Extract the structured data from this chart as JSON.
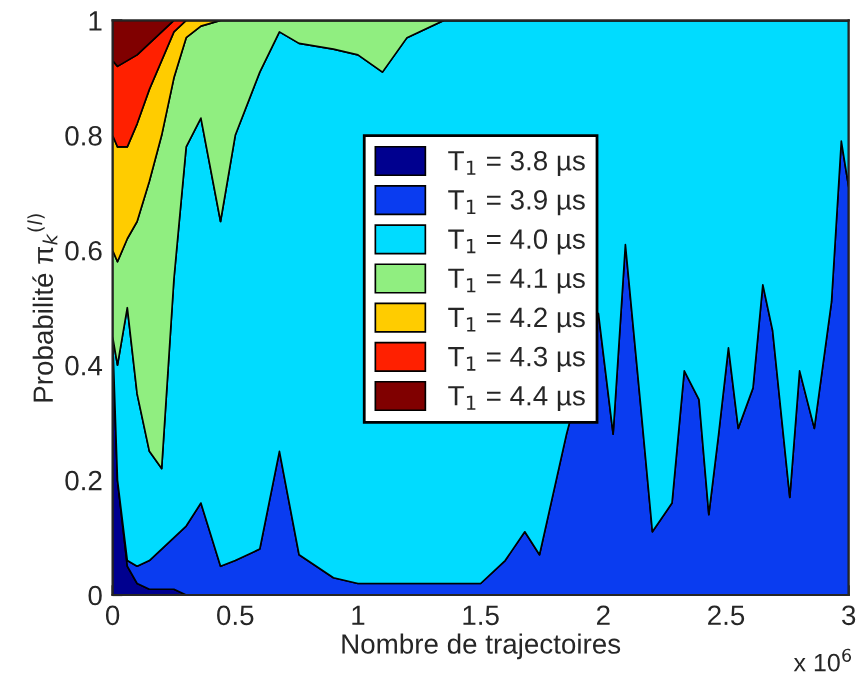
{
  "chart_data": {
    "type": "area",
    "stacked": true,
    "xlabel": "Nombre de trajectoires",
    "ylabel": "Probabilité π$_{k}$$^{(l)}$",
    "annotations": [
      "x 10$^{6}$"
    ],
    "x": [
      0,
      0.02,
      0.06,
      0.1,
      0.15,
      0.2,
      0.25,
      0.3,
      0.36,
      0.44,
      0.5,
      0.6,
      0.68,
      0.76,
      0.9,
      1.0,
      1.1,
      1.2,
      1.35,
      1.5,
      1.6,
      1.68,
      1.74,
      1.85,
      1.98,
      2.04,
      2.09,
      2.15,
      2.2,
      2.28,
      2.33,
      2.39,
      2.43,
      2.47,
      2.51,
      2.55,
      2.61,
      2.65,
      2.69,
      2.76,
      2.8,
      2.86,
      2.93,
      2.97,
      3.0
    ],
    "series": [
      {
        "name": "T$_{1}$ = 3.8 µs",
        "color": "#00008f",
        "values": [
          0.45,
          0.2,
          0.05,
          0.02,
          0.01,
          0.01,
          0.01,
          0,
          0,
          0,
          0,
          0,
          0,
          0,
          0,
          0,
          0,
          0,
          0,
          0,
          0,
          0,
          0,
          0,
          0,
          0,
          0,
          0,
          0,
          0,
          0,
          0,
          0,
          0,
          0,
          0,
          0,
          0,
          0,
          0,
          0,
          0,
          0,
          0,
          0
        ]
      },
      {
        "name": "T$_{1}$ = 3.9 µs",
        "color": "#0a3cf0",
        "values": [
          0,
          0,
          0.01,
          0.03,
          0.05,
          0.07,
          0.09,
          0.12,
          0.16,
          0.05,
          0.06,
          0.08,
          0.25,
          0.07,
          0.03,
          0.02,
          0.02,
          0.02,
          0.02,
          0.02,
          0.06,
          0.11,
          0.07,
          0.28,
          0.49,
          0.28,
          0.61,
          0.34,
          0.11,
          0.16,
          0.39,
          0.34,
          0.14,
          0.28,
          0.43,
          0.29,
          0.36,
          0.54,
          0.46,
          0.17,
          0.39,
          0.29,
          0.51,
          0.79,
          0.71
        ]
      },
      {
        "name": "T$_{1}$ = 4.0 µs",
        "color": "#00dcff",
        "values": [
          0,
          0.2,
          0.44,
          0.3,
          0.19,
          0.14,
          0.45,
          0.66,
          0.67,
          0.6,
          0.74,
          0.83,
          0.73,
          0.89,
          0.92,
          0.92,
          0.89,
          0.95,
          0.98,
          0.98,
          0.94,
          0.89,
          0.93,
          0.72,
          0.51,
          0.72,
          0.39,
          0.66,
          0.89,
          0.84,
          0.61,
          0.66,
          0.86,
          0.72,
          0.57,
          0.71,
          0.64,
          0.46,
          0.54,
          0.83,
          0.61,
          0.71,
          0.49,
          0.21,
          0.29
        ]
      },
      {
        "name": "T$_{1}$ = 4.1 µs",
        "color": "#90ee80",
        "values": [
          0.15,
          0.18,
          0.12,
          0.3,
          0.47,
          0.58,
          0.35,
          0.19,
          0.16,
          0.35,
          0.2,
          0.09,
          0.02,
          0.04,
          0.05,
          0.06,
          0.09,
          0.03,
          0,
          0,
          0,
          0,
          0,
          0,
          0,
          0,
          0,
          0,
          0,
          0,
          0,
          0,
          0,
          0,
          0,
          0,
          0,
          0,
          0,
          0,
          0,
          0,
          0,
          0,
          0
        ]
      },
      {
        "name": "T$_{1}$ = 4.2 µs",
        "color": "#ffcc00",
        "values": [
          0.2,
          0.2,
          0.16,
          0.17,
          0.16,
          0.13,
          0.08,
          0.03,
          0.01,
          0,
          0,
          0,
          0,
          0,
          0,
          0,
          0,
          0,
          0,
          0,
          0,
          0,
          0,
          0,
          0,
          0,
          0,
          0,
          0,
          0,
          0,
          0,
          0,
          0,
          0,
          0,
          0,
          0,
          0,
          0,
          0,
          0,
          0,
          0,
          0
        ]
      },
      {
        "name": "T$_{1}$ = 4.3 µs",
        "color": "#ff2000",
        "values": [
          0.13,
          0.14,
          0.15,
          0.12,
          0.08,
          0.05,
          0.02,
          0,
          0,
          0,
          0,
          0,
          0,
          0,
          0,
          0,
          0,
          0,
          0,
          0,
          0,
          0,
          0,
          0,
          0,
          0,
          0,
          0,
          0,
          0,
          0,
          0,
          0,
          0,
          0,
          0,
          0,
          0,
          0,
          0,
          0,
          0,
          0,
          0,
          0
        ]
      },
      {
        "name": "T$_{1}$ = 4.4 µs",
        "color": "#800000",
        "values": [
          0.07,
          0.08,
          0.07,
          0.06,
          0.04,
          0.02,
          0,
          0,
          0,
          0,
          0,
          0,
          0,
          0,
          0,
          0,
          0,
          0,
          0,
          0,
          0,
          0,
          0,
          0,
          0,
          0,
          0,
          0,
          0,
          0,
          0,
          0,
          0,
          0,
          0,
          0,
          0,
          0,
          0,
          0,
          0,
          0,
          0,
          0,
          0
        ]
      }
    ],
    "xlim": [
      0,
      3
    ],
    "xticks": [
      0,
      0.5,
      1,
      1.5,
      2,
      2.5,
      3
    ],
    "ylim": [
      0,
      1
    ],
    "yticks": [
      0,
      0.2,
      0.4,
      0.6,
      0.8,
      1
    ],
    "legend": "center"
  }
}
